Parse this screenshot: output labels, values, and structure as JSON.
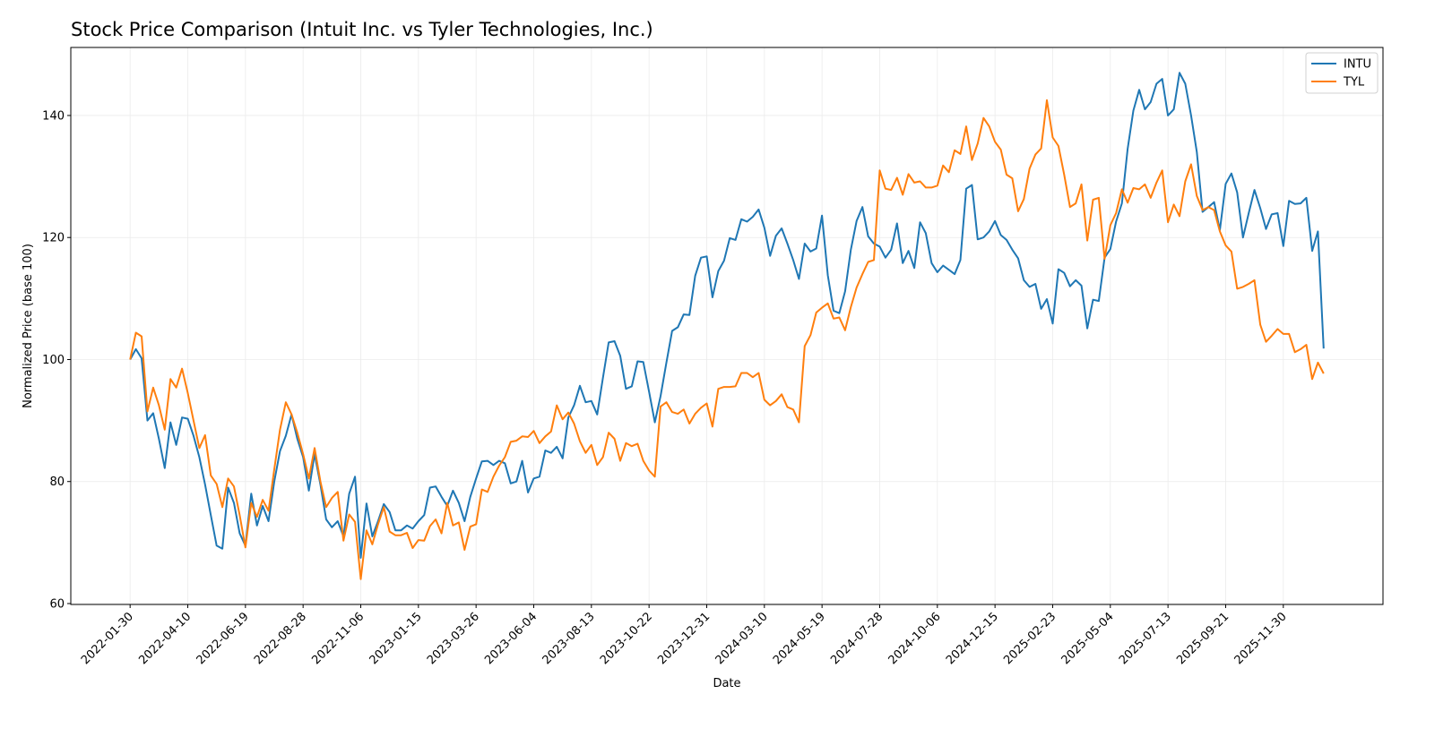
{
  "chart_data": {
    "type": "line",
    "title": "Stock Price Comparison (Intuit Inc. vs Tyler Technologies, Inc.)",
    "xlabel": "Date",
    "ylabel": "Normalized Price (base 100)",
    "xlim": [
      "2021-11-19",
      "2026-03-31"
    ],
    "ylim": [
      59.85,
      151.15
    ],
    "grid": true,
    "legend_position": "top-right",
    "x_ticks": [
      "2022-01-30",
      "2022-04-10",
      "2022-06-19",
      "2022-08-28",
      "2022-11-06",
      "2023-01-15",
      "2023-03-26",
      "2023-06-04",
      "2023-08-13",
      "2023-10-22",
      "2023-12-31",
      "2024-03-10",
      "2024-05-19",
      "2024-07-28",
      "2024-10-06",
      "2024-12-15",
      "2025-02-23",
      "2025-05-04",
      "2025-07-13",
      "2025-09-21",
      "2025-11-30"
    ],
    "y_ticks": [
      60,
      80,
      100,
      120,
      140
    ],
    "x": [
      "2022-01-30",
      "2022-02-06",
      "2022-02-13",
      "2022-02-20",
      "2022-02-27",
      "2022-03-06",
      "2022-03-13",
      "2022-03-20",
      "2022-03-27",
      "2022-04-03",
      "2022-04-10",
      "2022-04-17",
      "2022-04-24",
      "2022-05-01",
      "2022-05-08",
      "2022-05-15",
      "2022-05-22",
      "2022-05-29",
      "2022-06-05",
      "2022-06-12",
      "2022-06-19",
      "2022-06-26",
      "2022-07-03",
      "2022-07-10",
      "2022-07-17",
      "2022-07-24",
      "2022-07-31",
      "2022-08-07",
      "2022-08-14",
      "2022-08-21",
      "2022-08-28",
      "2022-09-04",
      "2022-09-11",
      "2022-09-18",
      "2022-09-25",
      "2022-10-02",
      "2022-10-09",
      "2022-10-16",
      "2022-10-23",
      "2022-10-30",
      "2022-11-06",
      "2022-11-13",
      "2022-11-20",
      "2022-11-27",
      "2022-12-04",
      "2022-12-11",
      "2022-12-18",
      "2022-12-25",
      "2023-01-01",
      "2023-01-08",
      "2023-01-15",
      "2023-01-22",
      "2023-01-29",
      "2023-02-05",
      "2023-02-12",
      "2023-02-19",
      "2023-02-26",
      "2023-03-05",
      "2023-03-12",
      "2023-03-19",
      "2023-03-26",
      "2023-04-02",
      "2023-04-09",
      "2023-04-16",
      "2023-04-23",
      "2023-04-30",
      "2023-05-07",
      "2023-05-14",
      "2023-05-21",
      "2023-05-28",
      "2023-06-04",
      "2023-06-11",
      "2023-06-18",
      "2023-06-25",
      "2023-07-02",
      "2023-07-09",
      "2023-07-16",
      "2023-07-23",
      "2023-07-30",
      "2023-08-06",
      "2023-08-13",
      "2023-08-20",
      "2023-08-27",
      "2023-09-03",
      "2023-09-10",
      "2023-09-17",
      "2023-09-24",
      "2023-10-01",
      "2023-10-08",
      "2023-10-15",
      "2023-10-22",
      "2023-10-29",
      "2023-11-05",
      "2023-11-12",
      "2023-11-19",
      "2023-11-26",
      "2023-12-03",
      "2023-12-10",
      "2023-12-17",
      "2023-12-24",
      "2023-12-31",
      "2024-01-07",
      "2024-01-14",
      "2024-01-21",
      "2024-01-28",
      "2024-02-04",
      "2024-02-11",
      "2024-02-18",
      "2024-02-25",
      "2024-03-03",
      "2024-03-10",
      "2024-03-17",
      "2024-03-24",
      "2024-03-31",
      "2024-04-07",
      "2024-04-14",
      "2024-04-21",
      "2024-04-28",
      "2024-05-05",
      "2024-05-12",
      "2024-05-19",
      "2024-05-26",
      "2024-06-02",
      "2024-06-09",
      "2024-06-16",
      "2024-06-23",
      "2024-06-30",
      "2024-07-07",
      "2024-07-14",
      "2024-07-21",
      "2024-07-28",
      "2024-08-04",
      "2024-08-11",
      "2024-08-18",
      "2024-08-25",
      "2024-09-01",
      "2024-09-08",
      "2024-09-15",
      "2024-09-22",
      "2024-09-29",
      "2024-10-06",
      "2024-10-13",
      "2024-10-20",
      "2024-10-27",
      "2024-11-03",
      "2024-11-10",
      "2024-11-17",
      "2024-11-24",
      "2024-12-01",
      "2024-12-08",
      "2024-12-15",
      "2024-12-22",
      "2024-12-29",
      "2025-01-05",
      "2025-01-12",
      "2025-01-19",
      "2025-01-26",
      "2025-02-02",
      "2025-02-09",
      "2025-02-16",
      "2025-02-23",
      "2025-03-02",
      "2025-03-09",
      "2025-03-16",
      "2025-03-23",
      "2025-03-30",
      "2025-04-06",
      "2025-04-13",
      "2025-04-20",
      "2025-04-27",
      "2025-05-04",
      "2025-05-11",
      "2025-05-18",
      "2025-05-25",
      "2025-06-01",
      "2025-06-08",
      "2025-06-15",
      "2025-06-22",
      "2025-06-29",
      "2025-07-06",
      "2025-07-13",
      "2025-07-20",
      "2025-07-27",
      "2025-08-03",
      "2025-08-10",
      "2025-08-17",
      "2025-08-24",
      "2025-08-31",
      "2025-09-07",
      "2025-09-14",
      "2025-09-21",
      "2025-09-28",
      "2025-10-05",
      "2025-10-12",
      "2025-10-19",
      "2025-10-26",
      "2025-11-02",
      "2025-11-09",
      "2025-11-16",
      "2025-11-23",
      "2025-11-30",
      "2025-12-07",
      "2025-12-14",
      "2025-12-21",
      "2025-12-28",
      "2026-01-04",
      "2026-01-11",
      "2026-01-18"
    ],
    "series": [
      {
        "name": "INTU",
        "color": "#1f77b4",
        "values": [
          100,
          101.7,
          100.2,
          90,
          91.2,
          87,
          82.2,
          89.7,
          86,
          90.5,
          90.3,
          87.5,
          84,
          79.5,
          74.5,
          69.5,
          69,
          79,
          76.5,
          71.5,
          69.5,
          78,
          72.8,
          76,
          73.5,
          80,
          85,
          87.5,
          91,
          87,
          84,
          78.5,
          84.5,
          79.5,
          73.8,
          72.5,
          73.5,
          71,
          78,
          80.8,
          67.5,
          76.4,
          71,
          73.5,
          76.3,
          75,
          72,
          72,
          72.8,
          72.3,
          73.5,
          74.5,
          79,
          79.2,
          77.5,
          76,
          78.5,
          76.5,
          73.5,
          77.5,
          80.5,
          83.3,
          83.4,
          82.7,
          83.4,
          83,
          79.7,
          80,
          83.4,
          78.2,
          80.5,
          80.8,
          85.1,
          84.7,
          85.7,
          83.8,
          90.5,
          92.5,
          95.7,
          93,
          93.2,
          91,
          97,
          102.8,
          103,
          100.6,
          95.2,
          95.6,
          99.7,
          99.6,
          94.7,
          89.7,
          94,
          99.5,
          104.7,
          105.3,
          107.4,
          107.3,
          113.7,
          116.7,
          116.9,
          110.2,
          114.5,
          116.2,
          119.9,
          119.6,
          123,
          122.6,
          123.4,
          124.6,
          121.6,
          117,
          120.3,
          121.5,
          119,
          116.3,
          113.2,
          119,
          117.7,
          118.2,
          123.6,
          113.8,
          108,
          107.6,
          111.2,
          118,
          122.7,
          125,
          120.2,
          119,
          118.5,
          116.7,
          118,
          122.3,
          115.8,
          117.8,
          115,
          122.5,
          120.7,
          115.8,
          114.3,
          115.4,
          114.7,
          114,
          116.3,
          128,
          128.6,
          119.7,
          120,
          121,
          122.7,
          120.4,
          119.6,
          118,
          116.6,
          113,
          111.9,
          112.4,
          108.3,
          109.9,
          105.9,
          114.8,
          114.2,
          112,
          113,
          112.1,
          105.1,
          109.8,
          109.6,
          116.7,
          118.1,
          122.6,
          125.6,
          134.5,
          140.8,
          144.2,
          141,
          142.2,
          145.2,
          146,
          140,
          141,
          147,
          145.2,
          140,
          134,
          124.2,
          125,
          125.8,
          121.2,
          128.8,
          130.5,
          127.4,
          120,
          124,
          127.8,
          124.8,
          121.4,
          123.8,
          124,
          118.6,
          126,
          125.5,
          125.6,
          126.5,
          117.8,
          121,
          101.8
        ]
      },
      {
        "name": "TYL",
        "color": "#ff7f0e",
        "values": [
          100,
          104.4,
          103.8,
          91.5,
          95.4,
          92.5,
          88.5,
          96.8,
          95.4,
          98.5,
          94.5,
          90,
          85.5,
          87.6,
          81,
          79.6,
          75.8,
          80.5,
          79.2,
          74.5,
          69.2,
          76.5,
          74.2,
          77,
          75.2,
          82,
          88.5,
          93,
          91,
          88,
          84.5,
          80.5,
          85.5,
          80,
          75.8,
          77.3,
          78.3,
          70.3,
          74.6,
          73.4,
          64,
          72,
          69.7,
          73,
          75.8,
          71.8,
          71.2,
          71.2,
          71.6,
          69.1,
          70.4,
          70.3,
          72.7,
          73.8,
          71.5,
          76.5,
          72.8,
          73.3,
          68.8,
          72.6,
          73,
          78.7,
          78.3,
          80.8,
          82.6,
          84,
          86.5,
          86.7,
          87.4,
          87.3,
          88.3,
          86.3,
          87.4,
          88.2,
          92.5,
          90.2,
          91.3,
          89.5,
          86.6,
          84.7,
          86,
          82.7,
          84,
          88,
          87,
          83.4,
          86.3,
          85.8,
          86.2,
          83.4,
          81.8,
          80.8,
          92.3,
          93,
          91.4,
          91.1,
          91.8,
          89.5,
          91.1,
          92.1,
          92.8,
          89,
          95.2,
          95.5,
          95.5,
          95.6,
          97.8,
          97.8,
          97.1,
          97.8,
          93.4,
          92.5,
          93.2,
          94.3,
          92.2,
          91.8,
          89.7,
          102.2,
          104,
          107.7,
          108.5,
          109.2,
          106.7,
          106.9,
          104.8,
          108.6,
          111.8,
          114,
          116,
          116.3,
          131,
          128,
          127.8,
          129.8,
          127,
          130.4,
          129,
          129.2,
          128.2,
          128.2,
          128.5,
          131.8,
          130.7,
          134.3,
          133.7,
          138.2,
          132.7,
          135.4,
          139.6,
          138.2,
          135.7,
          134.4,
          130.3,
          129.7,
          124.3,
          126.3,
          131.3,
          133.6,
          134.6,
          142.5,
          136.4,
          135,
          130.3,
          125,
          125.6,
          128.7,
          119.5,
          126.2,
          126.5,
          116.5,
          122,
          124,
          127.9,
          125.7,
          128.1,
          127.9,
          128.7,
          126.5,
          129,
          131,
          122.5,
          125.4,
          123.5,
          129.2,
          132,
          126.8,
          124.5,
          125,
          124.5,
          121,
          118.7,
          117.7,
          111.6,
          111.9,
          112.4,
          113,
          105.7,
          102.9,
          103.9,
          105,
          104.2,
          104.2,
          101.2,
          101.7,
          102.4,
          96.8,
          99.5,
          97.7
        ]
      }
    ]
  }
}
